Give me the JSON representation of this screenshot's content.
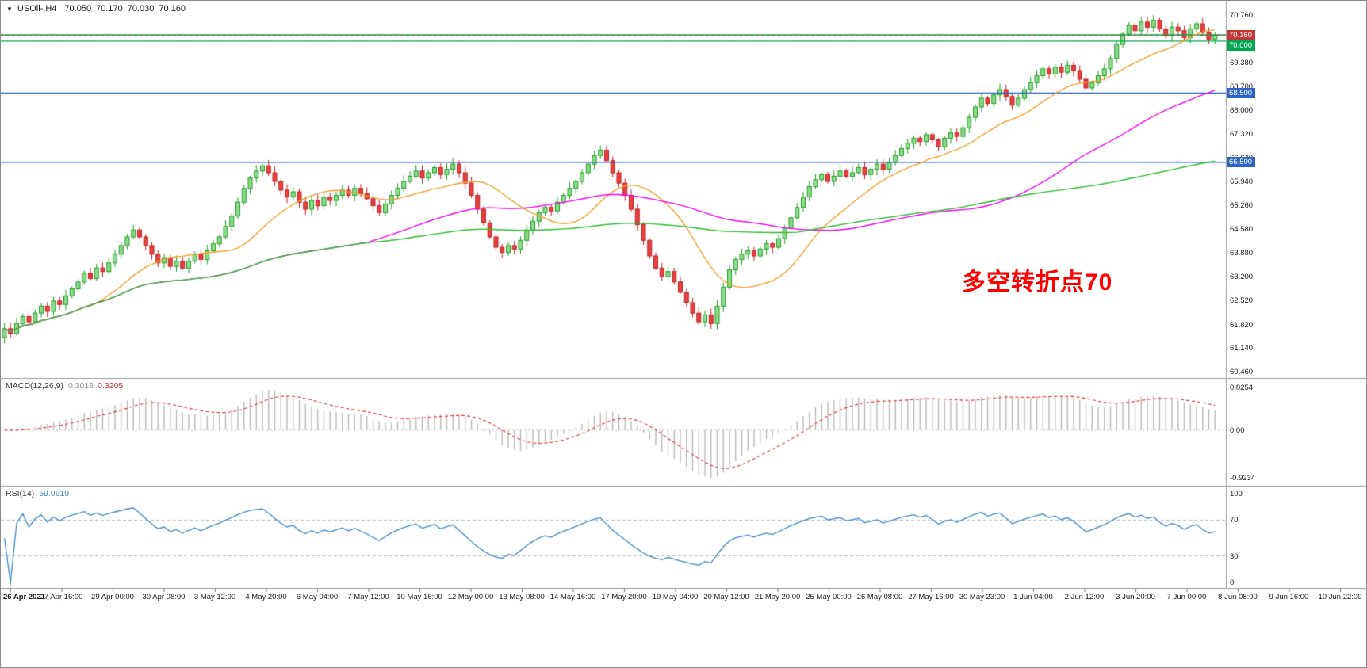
{
  "header": {
    "dropdown_icon": "▼",
    "symbol": "USOil-,H4",
    "open": "70.050",
    "high": "70.170",
    "low": "70.030",
    "close": "70.160"
  },
  "annotation": {
    "text": "多空转折点70",
    "color": "#ff0000"
  },
  "chart_data": {
    "type": "candlestick",
    "symbol": "USOil",
    "timeframe": "H4",
    "price_range": {
      "min": 60.37,
      "max": 70.98
    },
    "price_axis_ticks": [
      "70.760",
      "69.380",
      "68.700",
      "68.000",
      "67.320",
      "66.640",
      "65.940",
      "65.260",
      "64.580",
      "63.880",
      "63.200",
      "62.520",
      "61.820",
      "61.140",
      "60.460"
    ],
    "time_labels": [
      "26 Apr 2021",
      "27 Apr 16:00",
      "29 Apr 00:00",
      "30 Apr 08:00",
      "3 May 12:00",
      "4 May 20:00",
      "6 May 04:00",
      "7 May 12:00",
      "10 May 16:00",
      "12 May 00:00",
      "13 May 08:00",
      "14 May 16:00",
      "17 May 20:00",
      "19 May 04:00",
      "20 May 12:00",
      "21 May 20:00",
      "25 May 00:00",
      "26 May 08:00",
      "27 May 16:00",
      "30 May 23:00",
      "1 Jun 04:00",
      "2 Jun 12:00",
      "3 Jun 20:00",
      "7 Jun 00:00",
      "8 Jun 08:00",
      "9 Jun 16:00",
      "10 Jun 22:00"
    ],
    "open_rule": "each bar opens at previous bar close (H4 continuous market)",
    "closes": [
      61.7,
      61.55,
      61.85,
      62.05,
      61.9,
      62.15,
      62.35,
      62.2,
      62.5,
      62.4,
      62.65,
      62.85,
      63.05,
      63.3,
      63.15,
      63.45,
      63.35,
      63.6,
      63.85,
      64.1,
      64.35,
      64.55,
      64.35,
      64.1,
      63.85,
      63.6,
      63.75,
      63.5,
      63.65,
      63.45,
      63.65,
      63.85,
      63.7,
      63.95,
      64.15,
      64.35,
      64.65,
      64.95,
      65.35,
      65.75,
      66.05,
      66.25,
      66.4,
      66.2,
      65.95,
      65.7,
      65.5,
      65.65,
      65.35,
      65.15,
      65.4,
      65.25,
      65.5,
      65.4,
      65.55,
      65.7,
      65.55,
      65.75,
      65.6,
      65.45,
      65.25,
      65.05,
      65.3,
      65.55,
      65.75,
      65.95,
      66.1,
      66.25,
      66.05,
      66.2,
      66.35,
      66.15,
      66.3,
      66.45,
      66.2,
      65.9,
      65.55,
      65.15,
      64.75,
      64.35,
      64.05,
      63.9,
      64.1,
      64.0,
      64.25,
      64.55,
      64.8,
      65.05,
      65.2,
      65.1,
      65.35,
      65.55,
      65.75,
      65.95,
      66.2,
      66.45,
      66.7,
      66.85,
      66.55,
      66.2,
      65.9,
      65.55,
      65.15,
      64.7,
      64.25,
      63.8,
      63.45,
      63.2,
      63.35,
      63.05,
      62.75,
      62.45,
      62.15,
      61.9,
      62.1,
      61.85,
      62.35,
      62.9,
      63.4,
      63.7,
      63.85,
      63.95,
      63.8,
      64.0,
      64.15,
      64.05,
      64.3,
      64.6,
      64.9,
      65.2,
      65.5,
      65.8,
      66.0,
      66.15,
      65.95,
      66.1,
      66.25,
      66.1,
      66.2,
      66.35,
      66.15,
      66.3,
      66.45,
      66.3,
      66.5,
      66.7,
      66.9,
      67.05,
      67.2,
      67.1,
      67.3,
      67.15,
      66.95,
      67.2,
      67.35,
      67.25,
      67.5,
      67.8,
      68.1,
      68.35,
      68.2,
      68.45,
      68.6,
      68.4,
      68.15,
      68.35,
      68.6,
      68.8,
      69.0,
      69.2,
      69.05,
      69.25,
      69.1,
      69.3,
      69.15,
      68.9,
      68.65,
      68.8,
      69.0,
      69.2,
      69.5,
      69.9,
      70.2,
      70.45,
      70.3,
      70.55,
      70.4,
      70.6,
      70.35,
      70.15,
      70.4,
      70.3,
      70.1,
      70.35,
      70.5,
      70.25,
      70.05,
      70.16
    ],
    "horizontal_lines": [
      {
        "price": 70.18,
        "color": "#00a651",
        "style": "solid",
        "label": null
      },
      {
        "price": 70.0,
        "color": "#00a651",
        "style": "solid",
        "label": "70.000"
      },
      {
        "price": 68.5,
        "color": "#2e63c8",
        "style": "solid",
        "label": "68.500"
      },
      {
        "price": 66.5,
        "color": "#2e63c8",
        "style": "solid",
        "label": "66.500"
      }
    ],
    "current_price": {
      "value": 70.16,
      "label": "70.160",
      "color": "#c43636"
    },
    "moving_averages": [
      {
        "period": 16,
        "color": "#f0a030"
      },
      {
        "period": 60,
        "color": "#f000f0"
      },
      {
        "period": 130,
        "color": "#2eb82e"
      }
    ],
    "candle_colors": {
      "up_fill": "#8ed98e",
      "up_border": "#1fa01f",
      "down_fill": "#e64040",
      "down_border": "#c02020"
    }
  },
  "macd": {
    "label": "MACD(12,26,9)",
    "value_main": "0.3018",
    "value_signal": "0.3205",
    "fast": 12,
    "slow": 26,
    "signal": 9,
    "axis_ticks": [
      "0.8254",
      "0.00",
      "-0.9234"
    ],
    "axis_values": [
      0.8254,
      0,
      -0.9234
    ],
    "range": {
      "min": -1.05,
      "max": 0.95
    },
    "histogram_color": "#b4b4b4",
    "signal_color": "#e03232"
  },
  "rsi": {
    "label": "RSI(14)",
    "value": "59.0610",
    "period": 14,
    "axis_ticks": [
      "100",
      "70",
      "30",
      "0"
    ],
    "axis_values": [
      100,
      70,
      30,
      0
    ],
    "levels": [
      70,
      30
    ],
    "range": {
      "min": -5,
      "max": 105
    },
    "line_color": "#3d85c8"
  }
}
